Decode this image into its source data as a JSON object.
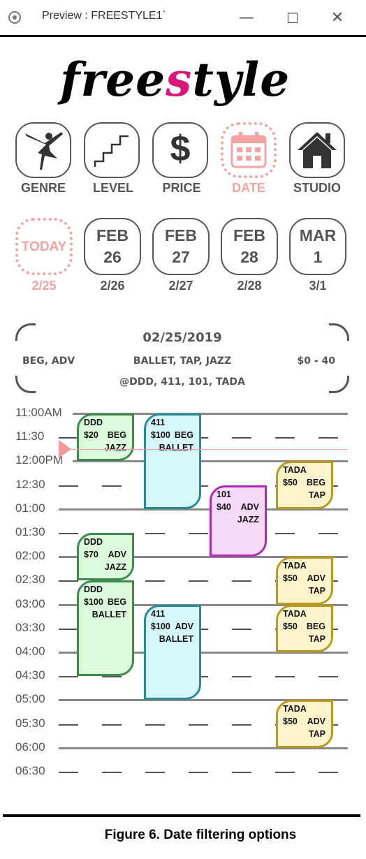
{
  "window": {
    "title": "Preview : FREESTYLE1`",
    "minimize_glyph": "—",
    "maximize_glyph": "☐",
    "close_glyph": "✕"
  },
  "logo": {
    "text_a": "free",
    "text_mid": "s",
    "text_b": "tyle",
    "accent_color": "#d6197a"
  },
  "filters": [
    {
      "label": "GENRE",
      "icon": "ballerina-icon",
      "active": false
    },
    {
      "label": "LEVEL",
      "icon": "stairs-icon",
      "active": false
    },
    {
      "label": "PRICE",
      "icon": "dollar-icon",
      "active": false
    },
    {
      "label": "DATE",
      "icon": "calendar-icon",
      "active": true
    },
    {
      "label": "STUDIO",
      "icon": "house-icon",
      "active": false
    }
  ],
  "dates": [
    {
      "month": "",
      "day": "",
      "today_text": "TODAY",
      "label": "2/25",
      "active": true
    },
    {
      "month": "FEB",
      "day": "26",
      "label": "2/26",
      "active": false
    },
    {
      "month": "FEB",
      "day": "27",
      "label": "2/27",
      "active": false
    },
    {
      "month": "FEB",
      "day": "28",
      "label": "2/28",
      "active": false
    },
    {
      "month": "MAR",
      "day": "1",
      "label": "3/1",
      "active": false
    }
  ],
  "summary": {
    "date": "02/25/2019",
    "levels": "BEG, ADV",
    "genres": "BALLET, TAP, JAZZ",
    "price_range": "$0 - 40",
    "studios": "@DDD, 411, 101, TADA"
  },
  "schedule": {
    "times": [
      "11:00AM",
      "11:30",
      "12:00PM",
      "12:30",
      "01:00",
      "01:30",
      "02:00",
      "02:30",
      "03:00",
      "03:30",
      "04:00",
      "04:30",
      "05:00",
      "05:30",
      "06:00",
      "06:30"
    ],
    "events": [
      {
        "studio": "DDD",
        "price": "$20",
        "level": "BEG",
        "genre": "JAZZ",
        "color": "green"
      },
      {
        "studio": "411",
        "price": "$100",
        "level": "BEG",
        "genre": "BALLET",
        "color": "cyan"
      },
      {
        "studio": "TADA",
        "price": "$50",
        "level": "BEG",
        "genre": "TAP",
        "color": "yellow"
      },
      {
        "studio": "101",
        "price": "$40",
        "level": "ADV",
        "genre": "JAZZ",
        "color": "purple"
      },
      {
        "studio": "DDD",
        "price": "$70",
        "level": "ADV",
        "genre": "JAZZ",
        "color": "green"
      },
      {
        "studio": "TADA",
        "price": "$50",
        "level": "ADV",
        "genre": "TAP",
        "color": "yellow"
      },
      {
        "studio": "DDD",
        "price": "$100",
        "level": "BEG",
        "genre": "BALLET",
        "color": "green"
      },
      {
        "studio": "TADA",
        "price": "$50",
        "level": "BEG",
        "genre": "TAP",
        "color": "yellow"
      },
      {
        "studio": "411",
        "price": "$100",
        "level": "ADV",
        "genre": "BALLET",
        "color": "cyan"
      },
      {
        "studio": "TADA",
        "price": "$50",
        "level": "ADV",
        "genre": "TAP",
        "color": "yellow"
      }
    ]
  },
  "caption": "Figure 6. Date filtering options"
}
